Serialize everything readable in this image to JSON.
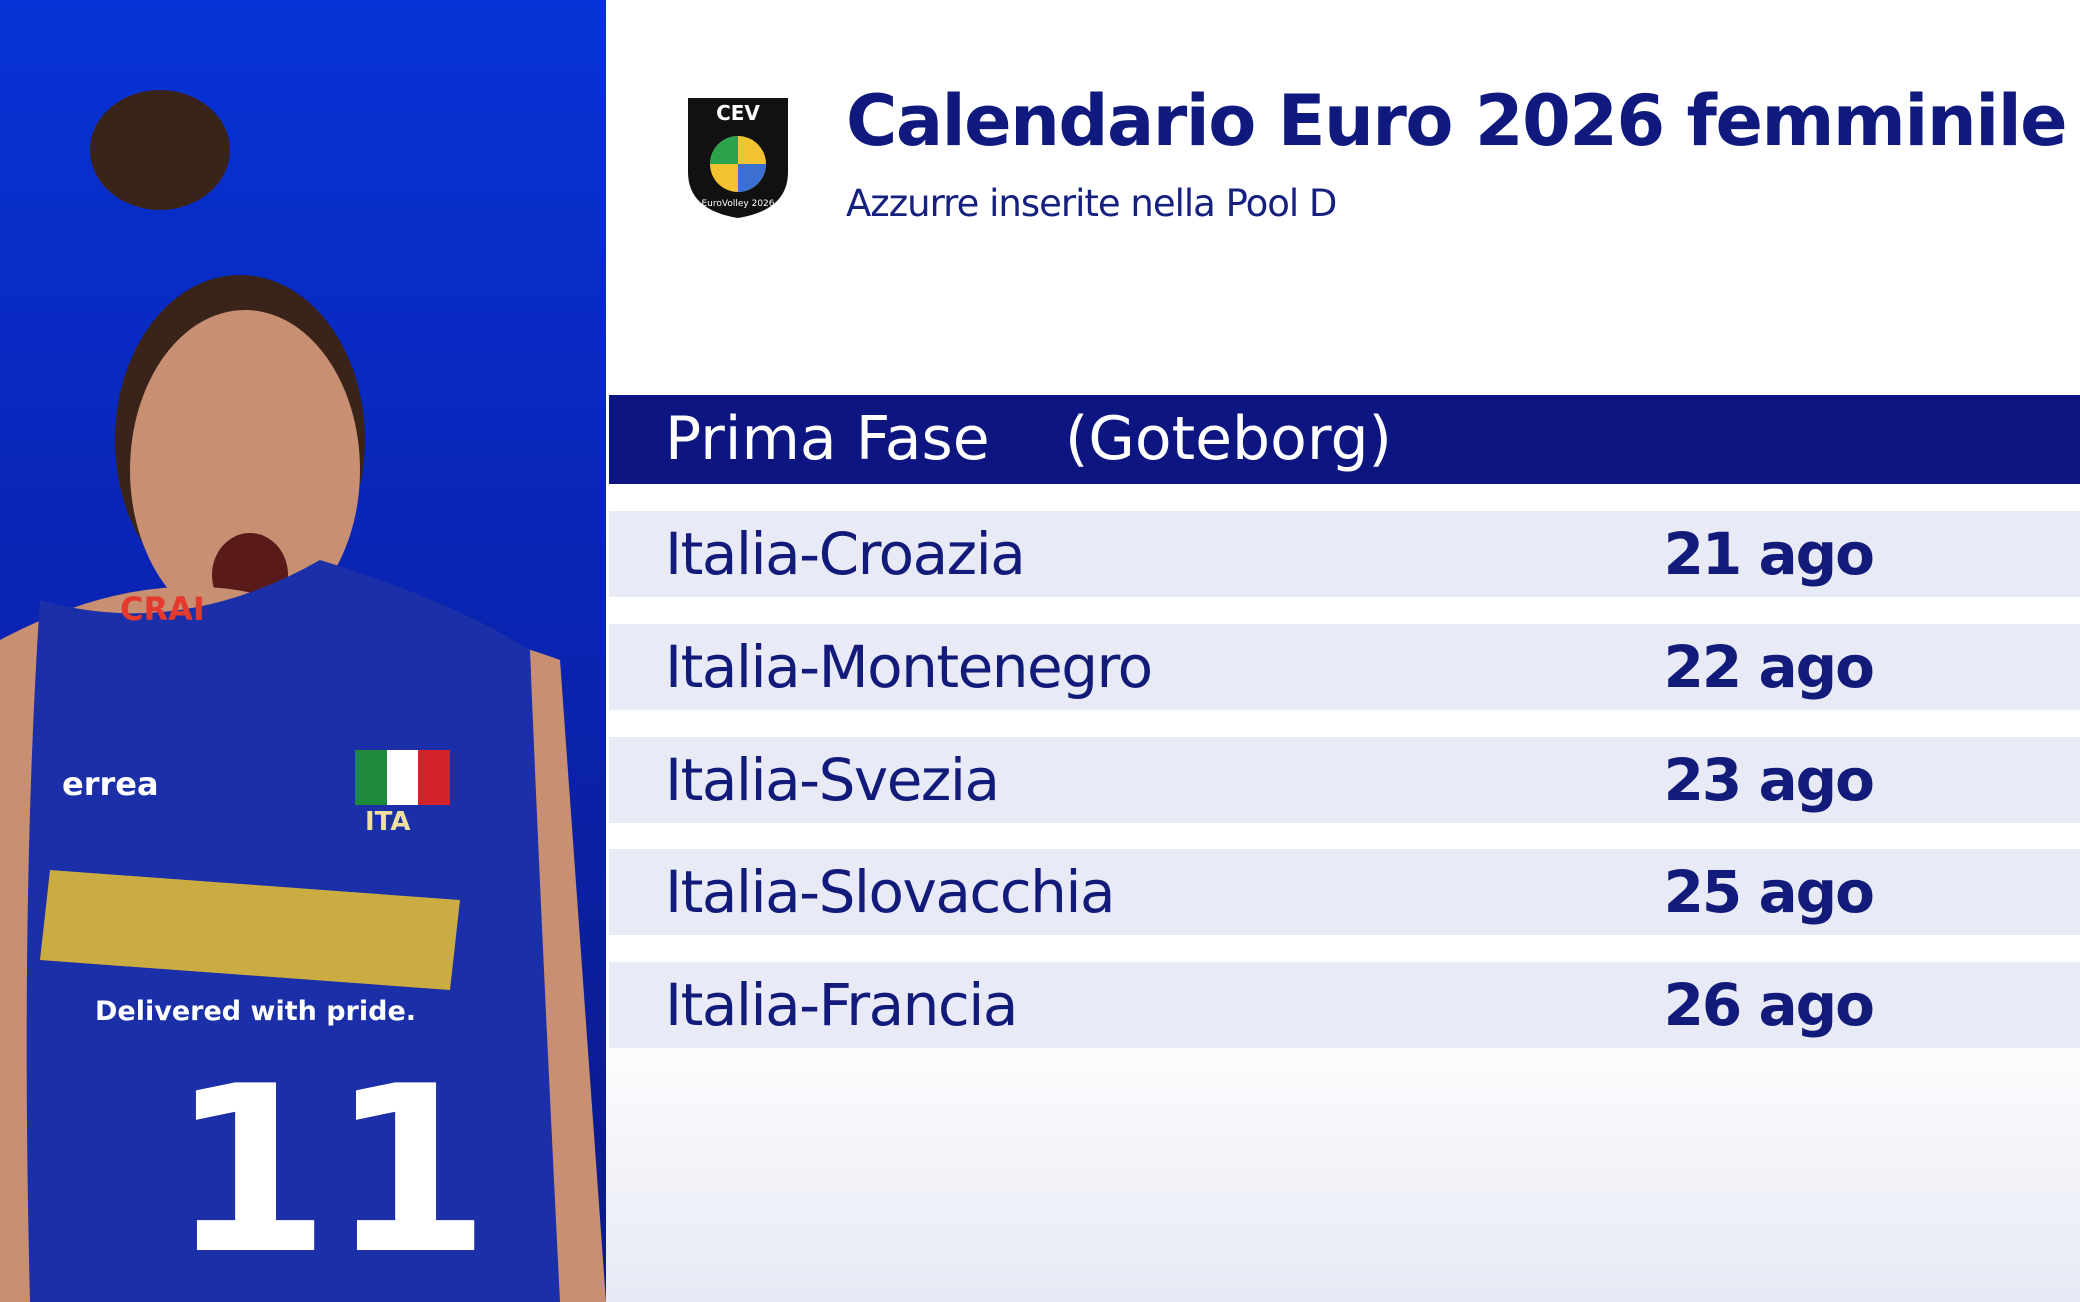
{
  "logo": {
    "top": "CEV",
    "bottom": "EuroVolley 2026"
  },
  "header": {
    "title": "Calendario Euro 2026 femminile",
    "subtitle": "Azzurre inserite nella Pool D"
  },
  "photo": {
    "jersey_texts": [
      "CRAI",
      "errea",
      "ITA",
      "Delivered with pride.",
      "11"
    ]
  },
  "table": {
    "phase": "Prima Fase",
    "venue": "(Goteborg)",
    "rows": [
      [
        "Italia-Croazia",
        "21 ago"
      ],
      [
        "Italia-Montenegro",
        "22 ago"
      ],
      [
        "Italia-Svezia",
        "23 ago"
      ],
      [
        "Italia-Slovacchia",
        "25 ago"
      ],
      [
        "Italia-Francia",
        "26 ago"
      ]
    ]
  }
}
